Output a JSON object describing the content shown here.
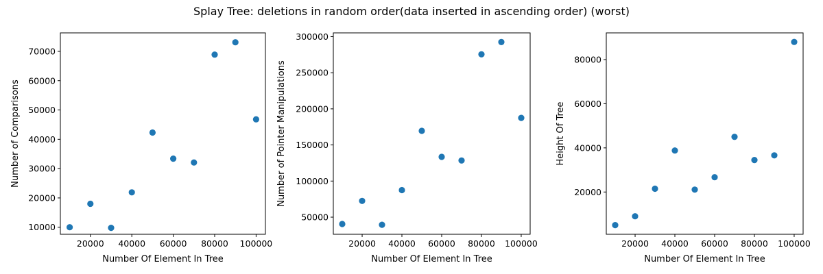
{
  "figure": {
    "suptitle": "Splay Tree: deletions in random order(data inserted in ascending order) (worst)"
  },
  "chart_data": [
    {
      "type": "scatter",
      "xlabel": "Number Of Element In Tree",
      "ylabel": "Number of Comparisons",
      "x": [
        10000,
        20000,
        30000,
        40000,
        50000,
        60000,
        70000,
        80000,
        90000,
        100000
      ],
      "y": [
        10000,
        18000,
        9800,
        21900,
        42300,
        33400,
        32100,
        68900,
        73100,
        46800
      ],
      "xlim": [
        5500,
        104500
      ],
      "ylim": [
        7600,
        76300
      ],
      "xticks": [
        20000,
        40000,
        60000,
        80000,
        100000
      ],
      "yticks": [
        10000,
        20000,
        30000,
        40000,
        50000,
        60000,
        70000
      ],
      "marker_color": "#1f77b4",
      "grid": false
    },
    {
      "type": "scatter",
      "xlabel": "Number Of Element In Tree",
      "ylabel": "Number of Pointer Manipulations",
      "x": [
        10000,
        20000,
        30000,
        40000,
        50000,
        60000,
        70000,
        80000,
        90000,
        100000
      ],
      "y": [
        40500,
        72500,
        39500,
        87500,
        169500,
        133500,
        128500,
        275500,
        292500,
        187500
      ],
      "xlim": [
        5500,
        104500
      ],
      "ylim": [
        26300,
        305200
      ],
      "xticks": [
        20000,
        40000,
        60000,
        80000,
        100000
      ],
      "yticks": [
        50000,
        100000,
        150000,
        200000,
        250000,
        300000
      ],
      "marker_color": "#1f77b4",
      "grid": false
    },
    {
      "type": "scatter",
      "xlabel": "Number Of Element In Tree",
      "ylabel": "Height Of Tree",
      "x": [
        10000,
        20000,
        30000,
        40000,
        50000,
        60000,
        70000,
        80000,
        90000,
        100000
      ],
      "y": [
        5000,
        9000,
        21500,
        38800,
        21100,
        26700,
        45000,
        34500,
        36600,
        88000
      ],
      "xlim": [
        5500,
        104500
      ],
      "ylim": [
        850,
        92100
      ],
      "xticks": [
        20000,
        40000,
        60000,
        80000,
        100000
      ],
      "yticks": [
        20000,
        40000,
        60000,
        80000
      ],
      "marker_color": "#1f77b4",
      "grid": false
    }
  ]
}
